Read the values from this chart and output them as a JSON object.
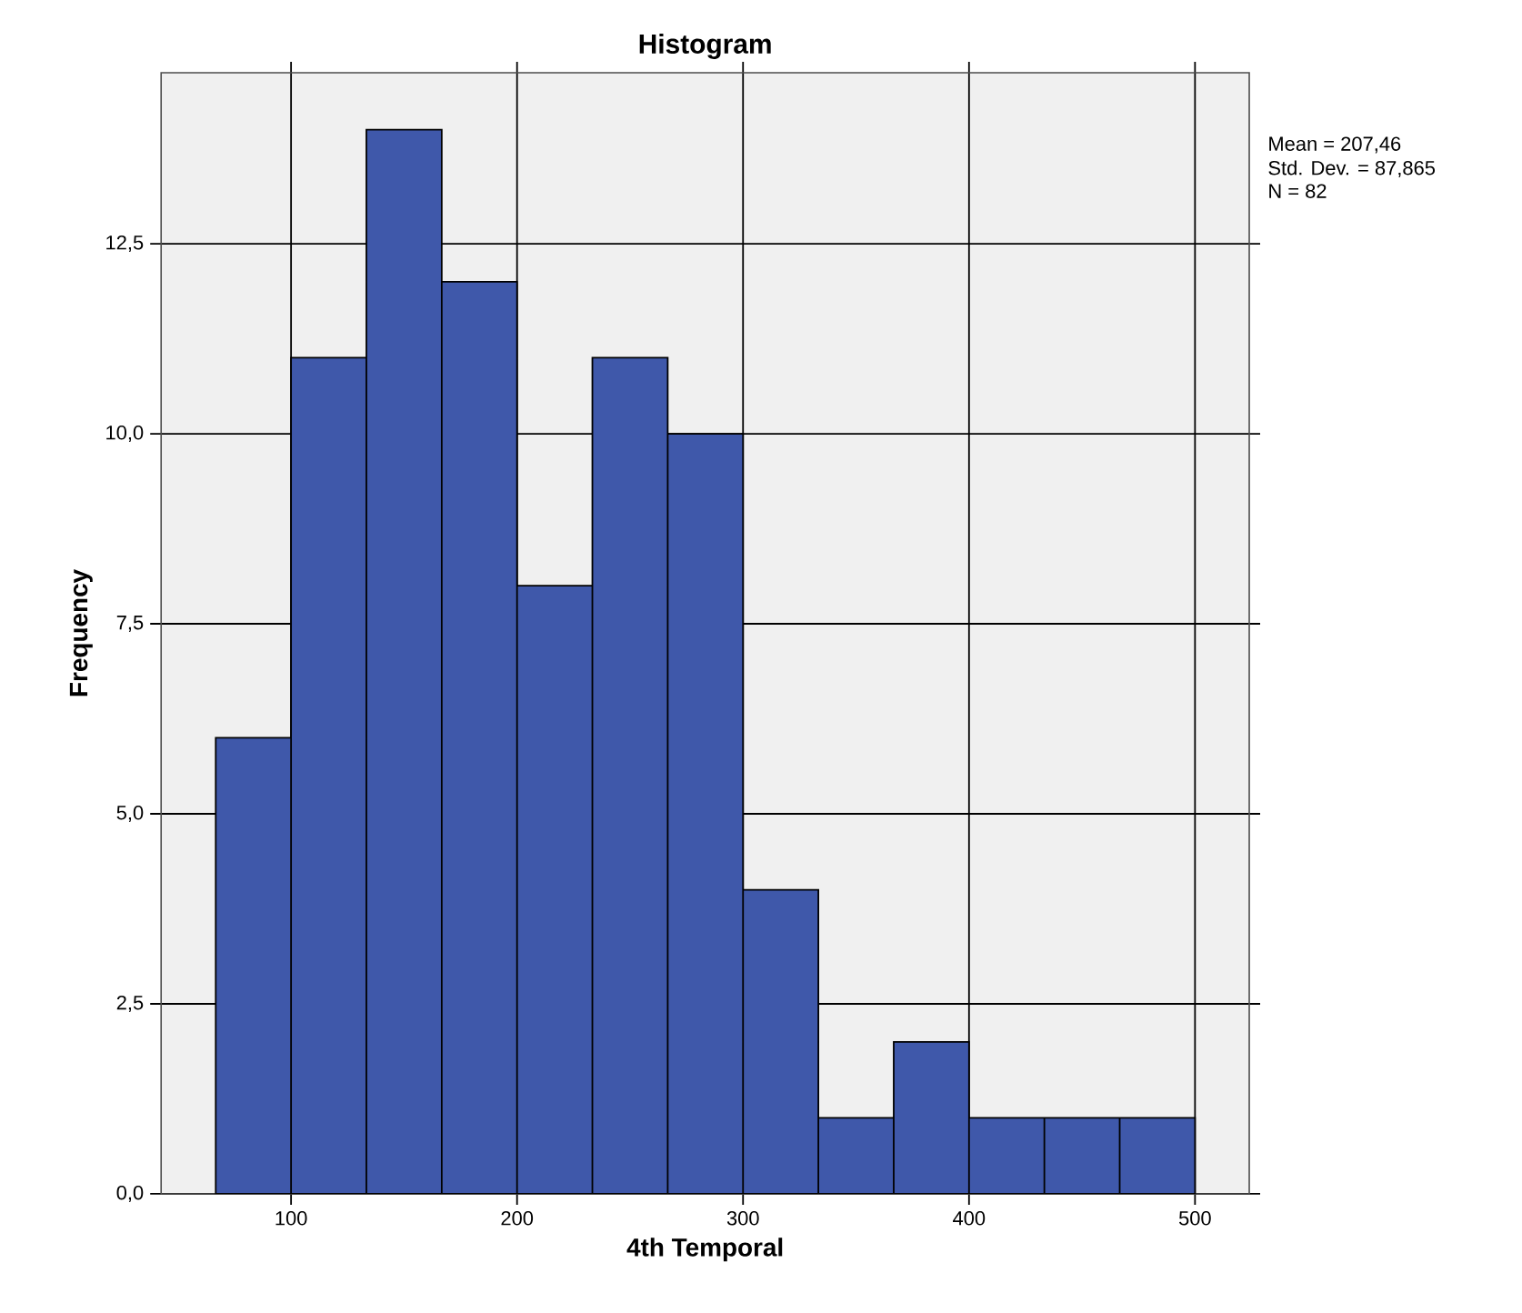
{
  "chart_data": {
    "type": "histogram",
    "title": "Histogram",
    "xlabel": "4th Temporal",
    "ylabel": "Frequency",
    "bins": [
      66.67,
      100,
      133.33,
      166.67,
      200,
      233.33,
      266.67,
      300,
      333.33,
      366.67,
      400,
      433.33,
      466.67,
      500
    ],
    "values": [
      6,
      11,
      14,
      12,
      8,
      11,
      10,
      4,
      1,
      2,
      1,
      1,
      1
    ],
    "color": "#3f58aa",
    "xlim": [
      42.5,
      524
    ],
    "xticks": [
      100,
      200,
      300,
      400,
      500
    ],
    "ylim": [
      0,
      14.75
    ],
    "yticks": [
      {
        "value": 0,
        "label": "0,0"
      },
      {
        "value": 2.5,
        "label": "2,5"
      },
      {
        "value": 5,
        "label": "5,0"
      },
      {
        "value": 7.5,
        "label": "7,5"
      },
      {
        "value": 10,
        "label": "10,0"
      },
      {
        "value": 12.5,
        "label": "12,5"
      }
    ],
    "grid": true,
    "annotations": [
      "Mean = 207,46",
      "Std. Dev. = 87,865",
      "N = 82"
    ]
  }
}
